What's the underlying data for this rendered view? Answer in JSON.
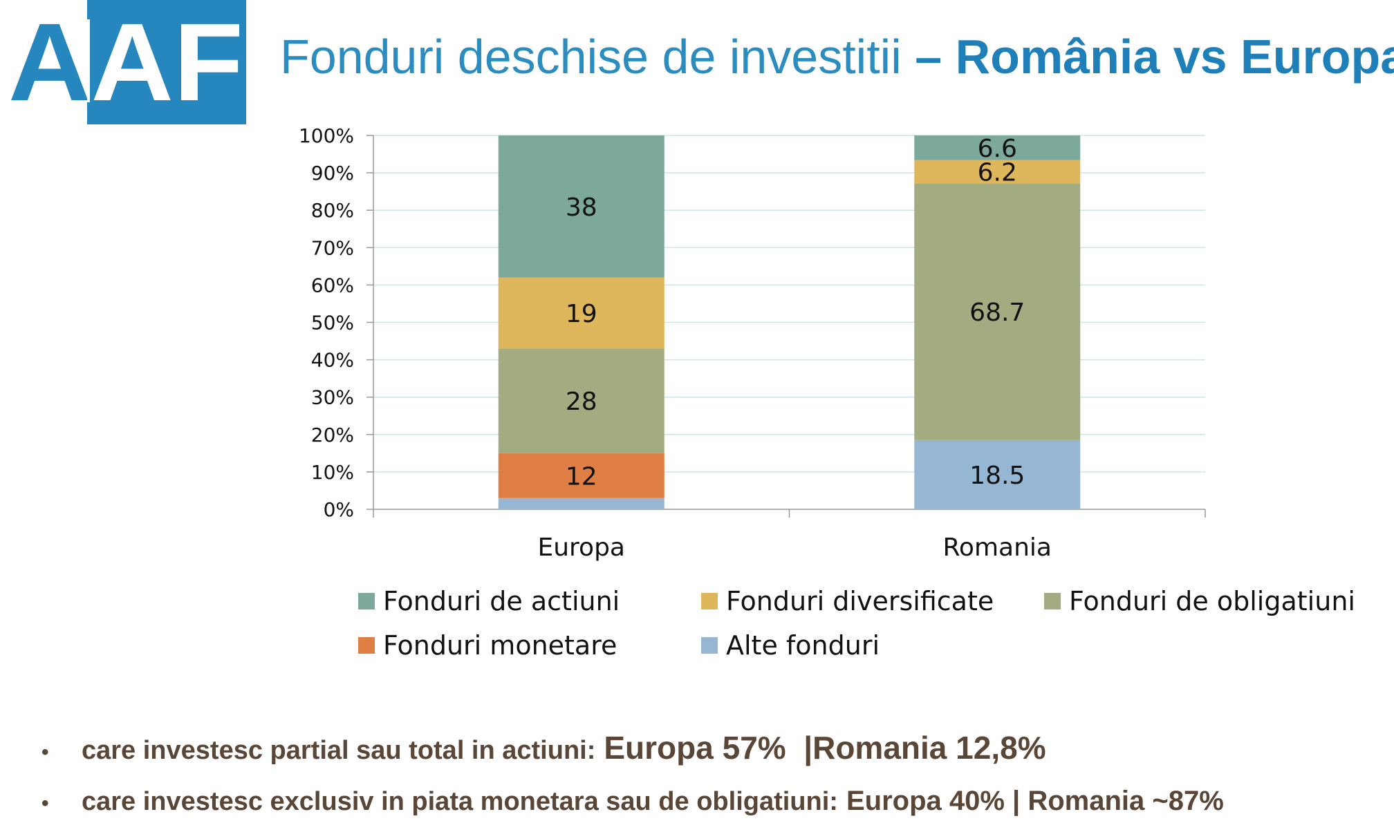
{
  "logo": {
    "text": "AAF",
    "color": "#2686be"
  },
  "title": {
    "light": "Fonduri deschise de investitii ",
    "bold": "– România vs Europa"
  },
  "chart_data": {
    "type": "bar",
    "stacked": true,
    "categories": [
      "Europa",
      "Romania"
    ],
    "ylim": [
      0,
      100
    ],
    "yticks": [
      "0%",
      "10%",
      "20%",
      "30%",
      "40%",
      "50%",
      "60%",
      "70%",
      "80%",
      "90%",
      "100%"
    ],
    "grid": true,
    "legend_position": "bottom",
    "series": [
      {
        "name": "Alte fonduri",
        "color": "#95b7d4",
        "values": [
          3,
          18.5
        ],
        "labels": [
          "",
          "18.5"
        ]
      },
      {
        "name": "Fonduri monetare",
        "color": "#e07f45",
        "values": [
          12,
          0
        ],
        "labels": [
          "12",
          ""
        ]
      },
      {
        "name": "Fonduri de obligatiuni",
        "color": "#a3ab80",
        "values": [
          28,
          68.7
        ],
        "labels": [
          "28",
          "68.7"
        ]
      },
      {
        "name": "Fonduri diversificate",
        "color": "#deb65c",
        "values": [
          19,
          6.2
        ],
        "labels": [
          "19",
          "6.2"
        ]
      },
      {
        "name": "Fonduri de actiuni",
        "color": "#7ca99c",
        "values": [
          38,
          6.6
        ],
        "labels": [
          "38",
          "6.6"
        ]
      }
    ]
  },
  "legend": {
    "row1": [
      {
        "name": "Fonduri de actiuni",
        "color": "#7ca99c"
      },
      {
        "name": "Fonduri diversificate",
        "color": "#deb65c"
      },
      {
        "name": "Fonduri de obligatiuni",
        "color": "#a3ab80"
      }
    ],
    "row2": [
      {
        "name": "Fonduri monetare",
        "color": "#e07f45"
      },
      {
        "name": "Alte fonduri",
        "color": "#95b7d4"
      }
    ]
  },
  "bullets": [
    {
      "text": "care investesc partial sau total in actiuni:",
      "highlight": "Europa 57%  |Romania 12,8%"
    },
    {
      "text": "care investesc exclusiv in piata monetara sau de obligatiuni:",
      "highlight": "Europa 40% | Romania ~87%"
    }
  ],
  "bullet_symbol": "•"
}
